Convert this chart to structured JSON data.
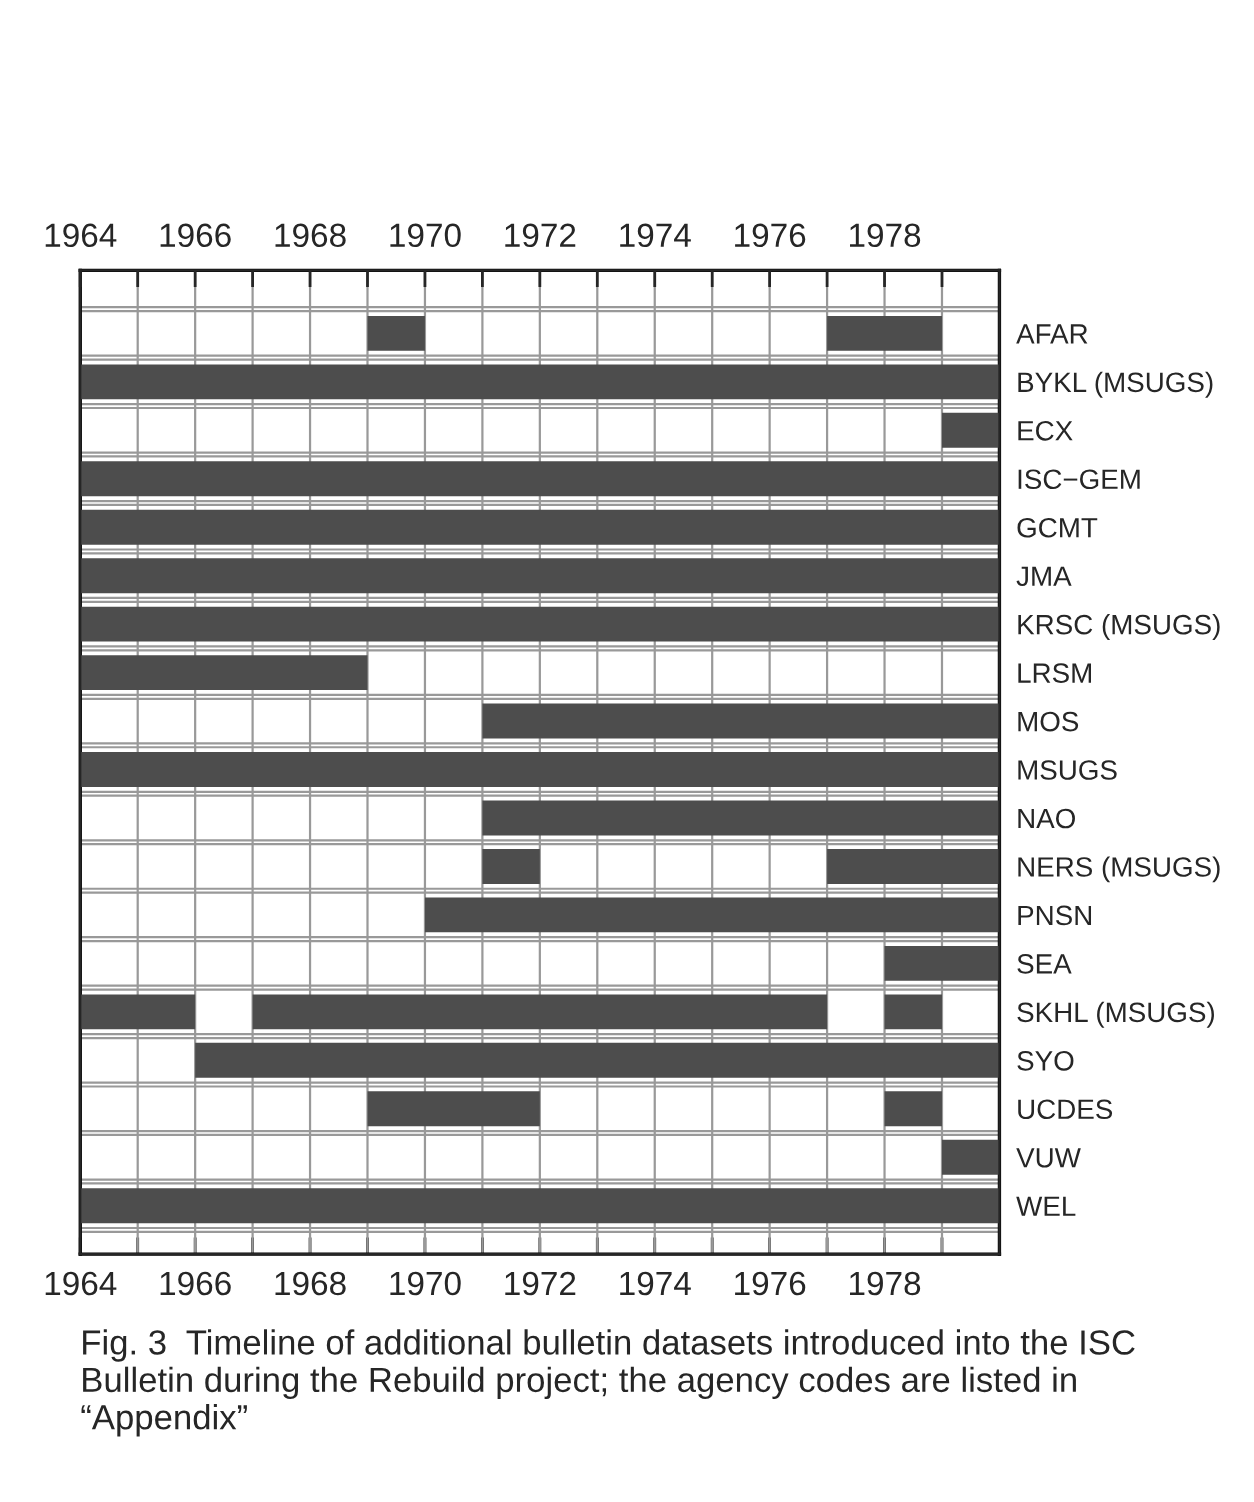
{
  "chart_data": {
    "type": "bar",
    "orientation": "horizontal",
    "categories": [
      "AFAR",
      "BYKL (MSUGS)",
      "ECX",
      "ISC−GEM",
      "GCMT",
      "JMA",
      "KRSC (MSUGS)",
      "LRSM",
      "MOS",
      "MSUGS",
      "NAO",
      "NERS (MSUGS)",
      "PNSN",
      "SEA",
      "SKHL (MSUGS)",
      "SYO",
      "UCDES",
      "VUW",
      "WEL"
    ],
    "series": [
      {
        "color": "#4d4d4d",
        "base": [
          1969,
          1964,
          1979,
          1964,
          1964,
          1964,
          1964,
          1964,
          1971,
          1964,
          1971,
          1971,
          1970,
          1978,
          1964,
          1966,
          1969,
          1979,
          1964
        ],
        "values": [
          1,
          16,
          1,
          16,
          16,
          16,
          16,
          5,
          9,
          16,
          9,
          1,
          10,
          2,
          2,
          14,
          3,
          1,
          16
        ]
      },
      {
        "color": "#4d4d4d",
        "base": [
          1977,
          null,
          null,
          null,
          null,
          null,
          null,
          null,
          null,
          null,
          null,
          1977,
          null,
          null,
          1967,
          null,
          1978,
          null,
          null
        ],
        "values": [
          2,
          null,
          null,
          null,
          null,
          null,
          null,
          null,
          null,
          null,
          null,
          3,
          null,
          null,
          10,
          null,
          1,
          null,
          null
        ]
      },
      {
        "color": "#4d4d4d",
        "base": [
          null,
          null,
          null,
          null,
          null,
          null,
          null,
          null,
          null,
          null,
          null,
          null,
          null,
          null,
          1978,
          null,
          null,
          null,
          null
        ],
        "values": [
          null,
          null,
          null,
          null,
          null,
          null,
          null,
          null,
          null,
          null,
          null,
          null,
          null,
          null,
          1,
          null,
          null,
          null,
          null
        ]
      }
    ],
    "xlim": [
      1964,
      1980
    ],
    "xticks": [
      1964,
      {
        "value": 1965,
        "label": null
      },
      1966,
      {
        "value": 1967,
        "label": null
      },
      1968,
      {
        "value": 1969,
        "label": null
      },
      1970,
      {
        "value": 1971,
        "label": null
      },
      1972,
      {
        "value": 1973,
        "label": null
      },
      1974,
      {
        "value": 1975,
        "label": null
      },
      1976,
      {
        "value": 1977,
        "label": null
      },
      1978,
      {
        "value": 1979,
        "label": null
      }
    ],
    "x2lim": [
      1964,
      1980
    ],
    "x2ticks": [
      1964,
      {
        "value": 1965,
        "label": null
      },
      1966,
      {
        "value": 1967,
        "label": null
      },
      1968,
      {
        "value": 1969,
        "label": null
      },
      1970,
      {
        "value": 1971,
        "label": null
      },
      1972,
      {
        "value": 1973,
        "label": null
      },
      1974,
      {
        "value": 1975,
        "label": null
      },
      1976,
      {
        "value": 1977,
        "label": null
      },
      1978,
      {
        "value": 1979,
        "label": null
      }
    ],
    "grid": true,
    "annotations": [
      "Fig. 3  Timeline of additional bulletin datasets introduced into the ISC Bulletin during the Rebuild project; the agency codes are listed in “Appendix”"
    ]
  }
}
